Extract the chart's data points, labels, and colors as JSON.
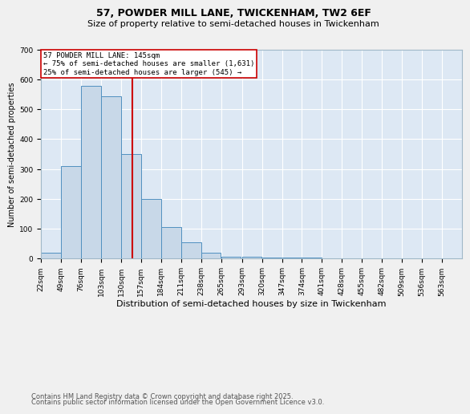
{
  "title1": "57, POWDER MILL LANE, TWICKENHAM, TW2 6EF",
  "title2": "Size of property relative to semi-detached houses in Twickenham",
  "xlabel": "Distribution of semi-detached houses by size in Twickenham",
  "ylabel": "Number of semi-detached properties",
  "bin_edges": [
    22,
    49,
    76,
    103,
    130,
    157,
    184,
    211,
    238,
    265,
    293,
    320,
    347,
    374,
    401,
    428,
    455,
    482,
    509,
    536,
    563,
    590
  ],
  "bar_heights": [
    20,
    310,
    580,
    545,
    350,
    200,
    105,
    55,
    20,
    5,
    5,
    3,
    2,
    2,
    1,
    1,
    1,
    0,
    0,
    0,
    0
  ],
  "bar_color": "#c8d8e8",
  "bar_edge_color": "#5090c0",
  "property_size": 145,
  "red_line_color": "#cc0000",
  "annotation_text": "57 POWDER MILL LANE: 145sqm\n← 75% of semi-detached houses are smaller (1,631)\n25% of semi-detached houses are larger (545) →",
  "annotation_box_color": "#ffffff",
  "annotation_box_edge": "#cc0000",
  "ylim": [
    0,
    700
  ],
  "yticks": [
    0,
    100,
    200,
    300,
    400,
    500,
    600,
    700
  ],
  "background_color": "#dde8f4",
  "grid_color": "#ffffff",
  "footer1": "Contains HM Land Registry data © Crown copyright and database right 2025.",
  "footer2": "Contains public sector information licensed under the Open Government Licence v3.0.",
  "title_fontsize": 9,
  "subtitle_fontsize": 8,
  "annotation_fontsize": 6.5,
  "footer_fontsize": 6,
  "tick_fontsize": 6.5,
  "ylabel_fontsize": 7,
  "xlabel_fontsize": 8
}
